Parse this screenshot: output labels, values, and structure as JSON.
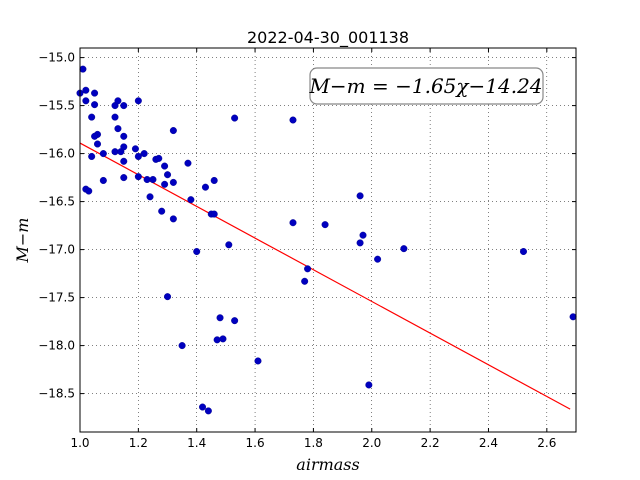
{
  "chart_data": {
    "type": "scatter",
    "title": "2022-04-30_001138",
    "xlabel": "airmass",
    "ylabel": "M−m",
    "xlim": [
      1.0,
      2.7
    ],
    "ylim": [
      -18.9,
      -14.9
    ],
    "xticks": [
      1.0,
      1.2,
      1.4,
      1.6,
      1.8,
      2.0,
      2.2,
      2.4,
      2.6
    ],
    "xtick_labels": [
      "1.0",
      "1.2",
      "1.4",
      "1.6",
      "1.8",
      "2.0",
      "2.2",
      "2.4",
      "2.6"
    ],
    "yticks": [
      -15.0,
      -15.5,
      -16.0,
      -16.5,
      -17.0,
      -17.5,
      -18.0,
      -18.5
    ],
    "ytick_labels": [
      "−15.0",
      "−15.5",
      "−16.0",
      "−16.5",
      "−17.0",
      "−17.5",
      "−18.0",
      "−18.5"
    ],
    "grid": true,
    "point_color": "#0000bf",
    "fit_color": "#ff0000",
    "fit": {
      "slope": -1.65,
      "intercept": -14.24,
      "x_range": [
        1.0,
        2.68
      ]
    },
    "annotation": {
      "text": "M−m = −1.65χ−14.24",
      "placement": "top-right"
    },
    "points": [
      [
        1.01,
        -15.12
      ],
      [
        1.0,
        -15.37
      ],
      [
        1.02,
        -15.34
      ],
      [
        1.02,
        -15.45
      ],
      [
        1.05,
        -15.37
      ],
      [
        1.05,
        -15.49
      ],
      [
        1.04,
        -15.62
      ],
      [
        1.06,
        -15.8
      ],
      [
        1.05,
        -15.82
      ],
      [
        1.06,
        -15.9
      ],
      [
        1.04,
        -16.03
      ],
      [
        1.08,
        -16.0
      ],
      [
        1.02,
        -16.37
      ],
      [
        1.03,
        -16.39
      ],
      [
        1.08,
        -16.28
      ],
      [
        1.12,
        -15.5
      ],
      [
        1.13,
        -15.45
      ],
      [
        1.15,
        -15.5
      ],
      [
        1.12,
        -15.62
      ],
      [
        1.13,
        -15.74
      ],
      [
        1.15,
        -15.82
      ],
      [
        1.12,
        -15.98
      ],
      [
        1.14,
        -15.98
      ],
      [
        1.15,
        -15.93
      ],
      [
        1.15,
        -16.08
      ],
      [
        1.2,
        -15.45
      ],
      [
        1.19,
        -15.95
      ],
      [
        1.2,
        -16.03
      ],
      [
        1.22,
        -16.0
      ],
      [
        1.23,
        -16.27
      ],
      [
        1.15,
        -16.25
      ],
      [
        1.2,
        -16.24
      ],
      [
        1.26,
        -16.06
      ],
      [
        1.27,
        -16.05
      ],
      [
        1.25,
        -16.27
      ],
      [
        1.29,
        -16.13
      ],
      [
        1.3,
        -16.22
      ],
      [
        1.29,
        -16.32
      ],
      [
        1.32,
        -16.3
      ],
      [
        1.32,
        -15.76
      ],
      [
        1.37,
        -16.1
      ],
      [
        1.24,
        -16.45
      ],
      [
        1.38,
        -16.48
      ],
      [
        1.43,
        -16.35
      ],
      [
        1.46,
        -16.28
      ],
      [
        1.28,
        -16.6
      ],
      [
        1.32,
        -16.68
      ],
      [
        1.45,
        -16.63
      ],
      [
        1.46,
        -16.63
      ],
      [
        1.53,
        -15.63
      ],
      [
        1.4,
        -17.02
      ],
      [
        1.51,
        -16.95
      ],
      [
        1.3,
        -17.49
      ],
      [
        1.35,
        -18.0
      ],
      [
        1.48,
        -17.71
      ],
      [
        1.53,
        -17.74
      ],
      [
        1.47,
        -17.94
      ],
      [
        1.49,
        -17.93
      ],
      [
        1.42,
        -18.64
      ],
      [
        1.44,
        -18.68
      ],
      [
        1.61,
        -18.16
      ],
      [
        1.73,
        -15.65
      ],
      [
        1.73,
        -16.72
      ],
      [
        1.84,
        -16.74
      ],
      [
        1.78,
        -17.2
      ],
      [
        1.77,
        -17.33
      ],
      [
        1.96,
        -16.44
      ],
      [
        1.97,
        -16.85
      ],
      [
        1.96,
        -16.93
      ],
      [
        2.02,
        -17.1
      ],
      [
        2.11,
        -16.99
      ],
      [
        1.99,
        -18.41
      ],
      [
        2.52,
        -17.02
      ],
      [
        2.69,
        -17.7
      ]
    ]
  }
}
